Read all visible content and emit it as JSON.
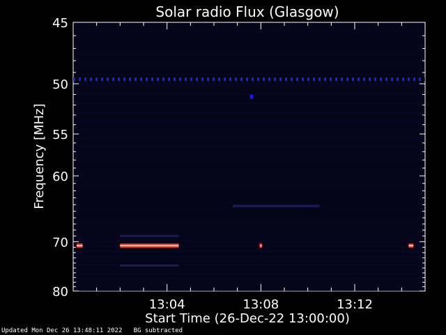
{
  "chart_data": {
    "type": "heatmap",
    "title": "Solar radio Flux (Glasgow)",
    "ylabel": "Frequency [MHz]",
    "xlabel": "Start Time (26-Dec-22 13:00:00)",
    "x_unit": "minutes after 13:00:00",
    "xlim": [
      0,
      15
    ],
    "ylim": [
      45,
      80
    ],
    "y_inverted": true,
    "y_ticks": [
      45,
      50,
      55,
      60,
      70,
      80
    ],
    "x_ticks": [
      {
        "value": 4,
        "label": "13:04"
      },
      {
        "value": 8,
        "label": "13:08"
      },
      {
        "value": 12,
        "label": "13:12"
      }
    ],
    "colors": {
      "background": "#000000",
      "plot_bg": "#05051a",
      "blue_signal": "#1a1aff",
      "faint": "#1c1c58",
      "red_burst": "#ff2a1a",
      "burst_core": "#ffd2c8"
    },
    "features": [
      {
        "kind": "dashed_line",
        "freq_mhz": 49.6,
        "from_min": 0,
        "to_min": 15,
        "color": "blue_signal"
      },
      {
        "kind": "dot",
        "freq_mhz": 51.2,
        "at_min": 7.6,
        "color": "blue_signal"
      },
      {
        "kind": "band",
        "freq_mhz": 70.7,
        "from_min": 0.15,
        "to_min": 0.4,
        "color": "red_burst"
      },
      {
        "kind": "band",
        "freq_mhz": 70.7,
        "from_min": 2.0,
        "to_min": 4.5,
        "color": "red_burst"
      },
      {
        "kind": "dot",
        "freq_mhz": 70.7,
        "at_min": 8.0,
        "color": "red_burst"
      },
      {
        "kind": "band",
        "freq_mhz": 70.7,
        "from_min": 14.3,
        "to_min": 14.5,
        "color": "red_burst"
      },
      {
        "kind": "faint",
        "freq_mhz": 69.0,
        "from_min": 2.0,
        "to_min": 4.5,
        "color": "faint"
      },
      {
        "kind": "faint",
        "freq_mhz": 74.5,
        "from_min": 2.0,
        "to_min": 4.5,
        "color": "faint"
      },
      {
        "kind": "faint",
        "freq_mhz": 64.2,
        "from_min": 6.8,
        "to_min": 10.5,
        "color": "faint"
      }
    ]
  },
  "footer": {
    "updated": "Updated Mon Dec 26 13:48:11 2022",
    "note": "BG subtracted"
  }
}
